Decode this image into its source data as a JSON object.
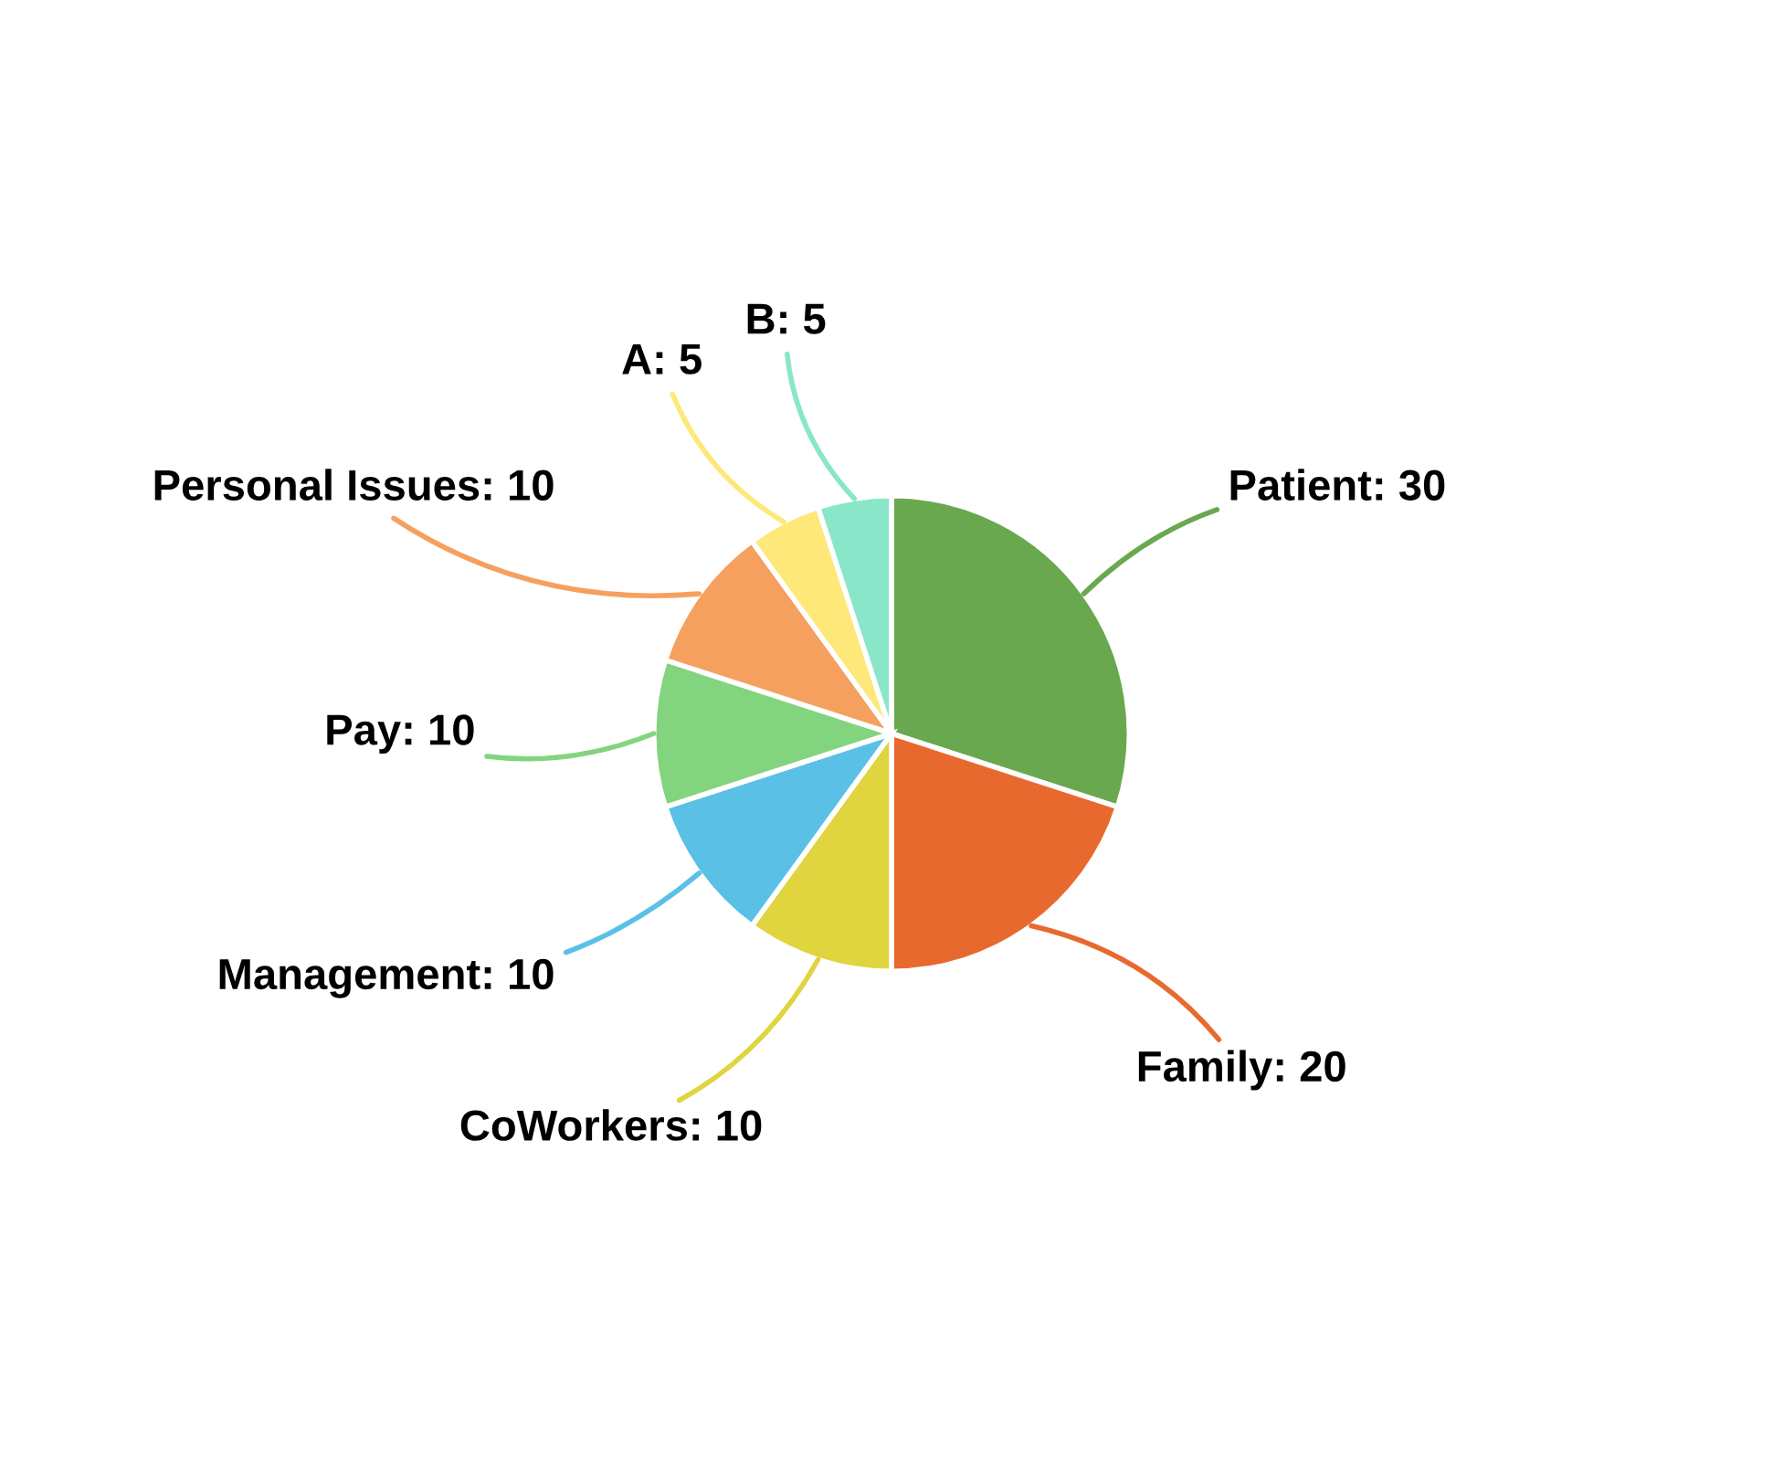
{
  "chart_data": {
    "type": "pie",
    "categories": [
      "Patient: 30",
      "Family: 20",
      "CoWorkers: 10",
      "Management: 10",
      "Pay: 10",
      "Personal Issues: 10",
      "A: 5",
      "B: 5"
    ],
    "values": [
      30,
      20,
      10,
      10,
      10,
      10,
      5,
      5
    ],
    "colors": [
      "#6aa84f",
      "#e8692e",
      "#e0d43f",
      "#5bc0e6",
      "#83d47e",
      "#f6a05f",
      "#fde879",
      "#8ae6c9"
    ],
    "legend": false
  }
}
